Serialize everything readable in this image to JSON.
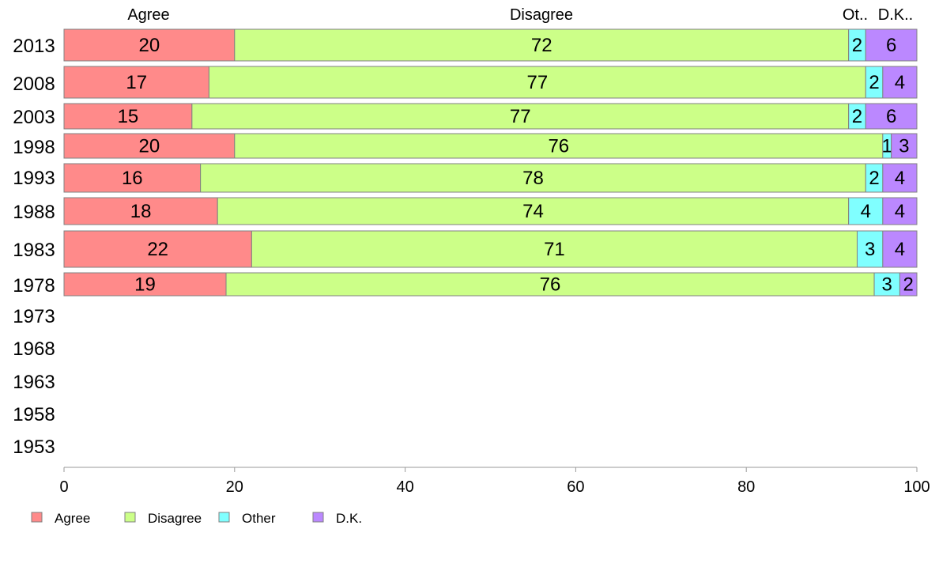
{
  "chart_data": {
    "type": "bar",
    "orientation": "horizontal",
    "stacked": true,
    "categories": [
      "2013",
      "2008",
      "2003",
      "1998",
      "1993",
      "1988",
      "1983",
      "1978",
      "1973",
      "1968",
      "1963",
      "1958",
      "1953"
    ],
    "series": [
      {
        "name": "Agree",
        "color": "#ff8a8a",
        "values": [
          20,
          17,
          15,
          20,
          16,
          18,
          22,
          19,
          null,
          null,
          null,
          null,
          null
        ]
      },
      {
        "name": "Disagree",
        "color": "#ccff88",
        "values": [
          72,
          77,
          77,
          76,
          78,
          74,
          71,
          76,
          null,
          null,
          null,
          null,
          null
        ]
      },
      {
        "name": "Other",
        "color": "#80ffff",
        "values": [
          2,
          2,
          2,
          1,
          2,
          4,
          3,
          3,
          null,
          null,
          null,
          null,
          null
        ]
      },
      {
        "name": "D.K.",
        "color": "#bb88ff",
        "values": [
          6,
          4,
          6,
          3,
          4,
          4,
          4,
          2,
          null,
          null,
          null,
          null,
          null
        ]
      }
    ],
    "column_headers": [
      "Agree",
      "Disagree",
      "Ot..",
      "D.K.."
    ],
    "xlim": [
      0,
      100
    ],
    "xticks": [
      "0",
      "20",
      "40",
      "60",
      "80",
      "100"
    ],
    "legend": [
      "Agree",
      "Disagree",
      "Other",
      "D.K."
    ],
    "legend_position": "bottom-left",
    "grid": false
  }
}
